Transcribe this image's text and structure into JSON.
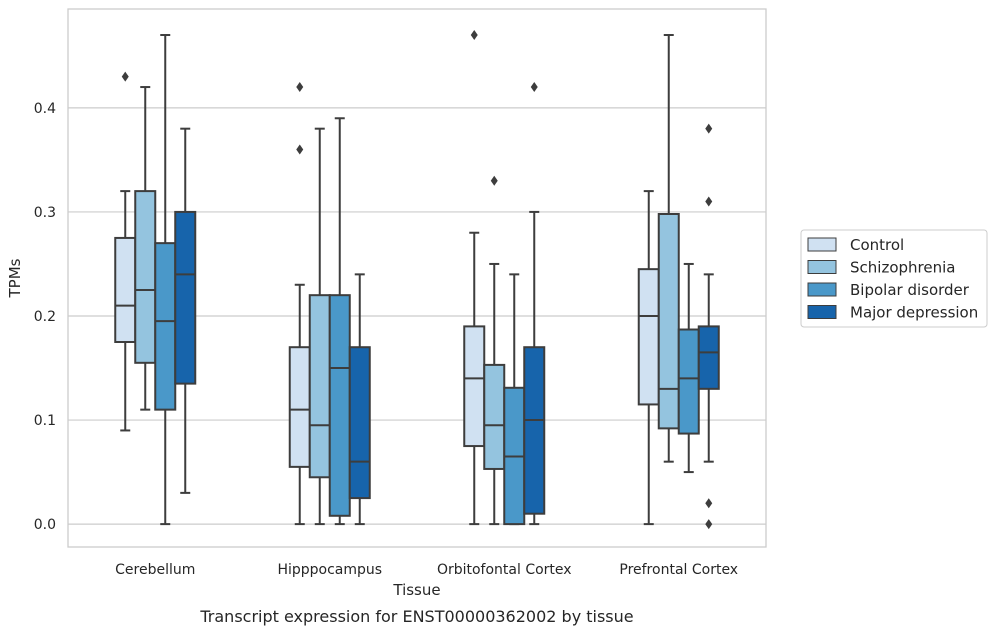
{
  "caption": "Transcript expression for ENST00000362002 by tissue",
  "chart_data": {
    "type": "box",
    "xlabel": "Tissue",
    "ylabel": "TPMs",
    "ylim": [
      -0.022,
      0.495
    ],
    "yticks": [
      "0.0",
      "0.1",
      "0.2",
      "0.3",
      "0.4"
    ],
    "grid": "horizontal",
    "legend_position": "right",
    "categories": [
      "Cerebellum",
      "Hipppocampus",
      "Orbitofontal Cortex",
      "Prefrontal Cortex"
    ],
    "series": [
      {
        "name": "Control",
        "color": "#d0e1f2",
        "boxes": [
          {
            "whisker_low": 0.09,
            "q1": 0.175,
            "median": 0.21,
            "q3": 0.275,
            "whisker_high": 0.32,
            "outliers": [
              0.43
            ]
          },
          {
            "whisker_low": 0.0,
            "q1": 0.055,
            "median": 0.11,
            "q3": 0.17,
            "whisker_high": 0.23,
            "outliers": [
              0.42,
              0.36
            ]
          },
          {
            "whisker_low": 0.0,
            "q1": 0.075,
            "median": 0.14,
            "q3": 0.19,
            "whisker_high": 0.28,
            "outliers": [
              0.47
            ]
          },
          {
            "whisker_low": 0.0,
            "q1": 0.115,
            "median": 0.2,
            "q3": 0.245,
            "whisker_high": 0.32,
            "outliers": []
          }
        ]
      },
      {
        "name": "Schizophrenia",
        "color": "#94c4df",
        "boxes": [
          {
            "whisker_low": 0.11,
            "q1": 0.155,
            "median": 0.225,
            "q3": 0.32,
            "whisker_high": 0.42,
            "outliers": []
          },
          {
            "whisker_low": 0.0,
            "q1": 0.045,
            "median": 0.095,
            "q3": 0.22,
            "whisker_high": 0.38,
            "outliers": []
          },
          {
            "whisker_low": 0.0,
            "q1": 0.053,
            "median": 0.095,
            "q3": 0.153,
            "whisker_high": 0.25,
            "outliers": [
              0.33
            ]
          },
          {
            "whisker_low": 0.06,
            "q1": 0.092,
            "median": 0.13,
            "q3": 0.298,
            "whisker_high": 0.47,
            "outliers": []
          }
        ]
      },
      {
        "name": "Bipolar disorder",
        "color": "#4a98c9",
        "boxes": [
          {
            "whisker_low": 0.0,
            "q1": 0.11,
            "median": 0.195,
            "q3": 0.27,
            "whisker_high": 0.47,
            "outliers": []
          },
          {
            "whisker_low": 0.0,
            "q1": 0.008,
            "median": 0.15,
            "q3": 0.22,
            "whisker_high": 0.39,
            "outliers": []
          },
          {
            "whisker_low": 0.0,
            "q1": 0.0,
            "median": 0.065,
            "q3": 0.131,
            "whisker_high": 0.24,
            "outliers": []
          },
          {
            "whisker_low": 0.05,
            "q1": 0.087,
            "median": 0.14,
            "q3": 0.187,
            "whisker_high": 0.25,
            "outliers": []
          }
        ]
      },
      {
        "name": "Major depression",
        "color": "#1764ab",
        "boxes": [
          {
            "whisker_low": 0.03,
            "q1": 0.135,
            "median": 0.24,
            "q3": 0.3,
            "whisker_high": 0.38,
            "outliers": []
          },
          {
            "whisker_low": 0.0,
            "q1": 0.025,
            "median": 0.06,
            "q3": 0.17,
            "whisker_high": 0.24,
            "outliers": []
          },
          {
            "whisker_low": 0.0,
            "q1": 0.01,
            "median": 0.1,
            "q3": 0.17,
            "whisker_high": 0.3,
            "outliers": [
              0.42
            ]
          },
          {
            "whisker_low": 0.06,
            "q1": 0.13,
            "median": 0.165,
            "q3": 0.19,
            "whisker_high": 0.24,
            "outliers": [
              0.38,
              0.31,
              0.02,
              0.0
            ]
          }
        ]
      }
    ]
  }
}
